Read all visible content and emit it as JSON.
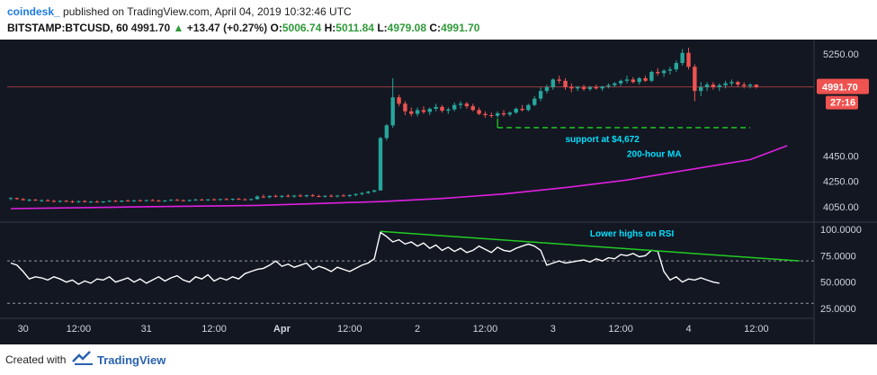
{
  "header": {
    "brand": "coindesk_",
    "published": "published on TradingView.com, April 04, 2019 10:32:46 UTC",
    "symbol": "BITSTAMP:BTCUSD, 60",
    "last": "4991.70",
    "up_arrow": "▲",
    "change": "+13.47 (+0.27%)",
    "o_label": "O:",
    "o_val": "5006.74",
    "h_label": "H:",
    "h_val": "5011.84",
    "l_label": "L:",
    "l_val": "4979.08",
    "c_label": "C:",
    "c_val": "4991.70"
  },
  "footer": {
    "created_with": "Created with",
    "tradingview": "TradingView"
  },
  "colors": {
    "background": "#131722",
    "up": "#26a69a",
    "down": "#ef5350",
    "ma": "#e020e0",
    "support": "#1fd81f",
    "rsi_line": "#ffffff",
    "rsi_trend": "#22cc22",
    "annotation_text": "#00e0ff",
    "last_price_bg": "#ef5350"
  },
  "chart_data": [
    {
      "type": "candlestick",
      "title": "",
      "y_ticks": [
        "5250.00",
        "4450.00",
        "4250.00",
        "4050.00"
      ],
      "ylim": [
        3950,
        5350
      ],
      "x_ticks": [
        "30",
        "12:00",
        "31",
        "12:00",
        "Apr",
        "12:00",
        "2",
        "12:00",
        "3",
        "12:00",
        "4",
        "12:00"
      ],
      "last_price_label": "4991.70",
      "countdown_label": "27:16",
      "annotations": [
        "support at $4,672",
        "200-hour MA"
      ],
      "support_level": 4672,
      "candles": [
        [
          4115,
          4125,
          4100,
          4118
        ],
        [
          4118,
          4122,
          4105,
          4110
        ],
        [
          4110,
          4118,
          4098,
          4102
        ],
        [
          4102,
          4112,
          4090,
          4105
        ],
        [
          4105,
          4112,
          4095,
          4098
        ],
        [
          4098,
          4108,
          4088,
          4100
        ],
        [
          4100,
          4110,
          4092,
          4095
        ],
        [
          4095,
          4105,
          4085,
          4090
        ],
        [
          4090,
          4100,
          4082,
          4096
        ],
        [
          4096,
          4104,
          4088,
          4092
        ],
        [
          4092,
          4100,
          4080,
          4088
        ],
        [
          4088,
          4098,
          4078,
          4094
        ],
        [
          4094,
          4102,
          4084,
          4086
        ],
        [
          4086,
          4096,
          4080,
          4090
        ],
        [
          4090,
          4100,
          4082,
          4084
        ],
        [
          4084,
          4094,
          4078,
          4092
        ],
        [
          4092,
          4102,
          4086,
          4096
        ],
        [
          4096,
          4104,
          4088,
          4090
        ],
        [
          4090,
          4100,
          4084,
          4098
        ],
        [
          4098,
          4108,
          4090,
          4094
        ],
        [
          4094,
          4104,
          4086,
          4100
        ],
        [
          4100,
          4108,
          4092,
          4096
        ],
        [
          4096,
          4104,
          4088,
          4102
        ],
        [
          4102,
          4110,
          4094,
          4098
        ],
        [
          4098,
          4106,
          4090,
          4092
        ],
        [
          4092,
          4102,
          4086,
          4100
        ],
        [
          4100,
          4110,
          4094,
          4104
        ],
        [
          4104,
          4112,
          4096,
          4100
        ],
        [
          4100,
          4108,
          4092,
          4098
        ],
        [
          4098,
          4106,
          4090,
          4103
        ],
        [
          4103,
          4112,
          4096,
          4106
        ],
        [
          4106,
          4114,
          4098,
          4100
        ],
        [
          4100,
          4110,
          4094,
          4108
        ],
        [
          4108,
          4116,
          4100,
          4104
        ],
        [
          4104,
          4112,
          4096,
          4110
        ],
        [
          4110,
          4118,
          4102,
          4106
        ],
        [
          4106,
          4114,
          4098,
          4112
        ],
        [
          4112,
          4120,
          4104,
          4108
        ],
        [
          4108,
          4116,
          4100,
          4104
        ],
        [
          4104,
          4114,
          4098,
          4110
        ],
        [
          4110,
          4140,
          4104,
          4130
        ],
        [
          4130,
          4145,
          4118,
          4125
        ],
        [
          4125,
          4140,
          4115,
          4135
        ],
        [
          4135,
          4145,
          4122,
          4128
        ],
        [
          4128,
          4140,
          4118,
          4136
        ],
        [
          4136,
          4148,
          4124,
          4130
        ],
        [
          4130,
          4142,
          4120,
          4138
        ],
        [
          4138,
          4150,
          4126,
          4132
        ],
        [
          4132,
          4146,
          4124,
          4140
        ],
        [
          4140,
          4150,
          4128,
          4134
        ],
        [
          4134,
          4144,
          4124,
          4130
        ],
        [
          4130,
          4140,
          4120,
          4136
        ],
        [
          4136,
          4148,
          4126,
          4132
        ],
        [
          4132,
          4142,
          4122,
          4138
        ],
        [
          4138,
          4150,
          4130,
          4134
        ],
        [
          4134,
          4146,
          4124,
          4142
        ],
        [
          4142,
          4156,
          4132,
          4150
        ],
        [
          4150,
          4164,
          4140,
          4158
        ],
        [
          4158,
          4175,
          4150,
          4168
        ],
        [
          4168,
          4185,
          4160,
          4178
        ],
        [
          4178,
          4600,
          4175,
          4590
        ],
        [
          4590,
          4700,
          4570,
          4690
        ],
        [
          4690,
          5060,
          4670,
          4910
        ],
        [
          4910,
          4930,
          4840,
          4860
        ],
        [
          4860,
          4880,
          4770,
          4800
        ],
        [
          4800,
          4830,
          4760,
          4780
        ],
        [
          4780,
          4830,
          4760,
          4810
        ],
        [
          4810,
          4840,
          4780,
          4795
        ],
        [
          4795,
          4830,
          4770,
          4820
        ],
        [
          4820,
          4860,
          4800,
          4835
        ],
        [
          4835,
          4850,
          4790,
          4805
        ],
        [
          4805,
          4830,
          4780,
          4815
        ],
        [
          4815,
          4870,
          4800,
          4850
        ],
        [
          4850,
          4880,
          4820,
          4860
        ],
        [
          4860,
          4875,
          4820,
          4840
        ],
        [
          4840,
          4860,
          4800,
          4810
        ],
        [
          4810,
          4830,
          4770,
          4780
        ],
        [
          4780,
          4800,
          4750,
          4770
        ],
        [
          4770,
          4790,
          4750,
          4765
        ],
        [
          4765,
          4800,
          4750,
          4785
        ],
        [
          4785,
          4810,
          4760,
          4775
        ],
        [
          4775,
          4800,
          4760,
          4790
        ],
        [
          4790,
          4830,
          4780,
          4820
        ],
        [
          4820,
          4850,
          4800,
          4810
        ],
        [
          4810,
          4860,
          4800,
          4850
        ],
        [
          4850,
          4920,
          4840,
          4900
        ],
        [
          4900,
          4990,
          4880,
          4960
        ],
        [
          4960,
          5010,
          4940,
          4990
        ],
        [
          4990,
          5060,
          4970,
          5050
        ],
        [
          5050,
          5080,
          5020,
          5040
        ],
        [
          5040,
          5060,
          4970,
          4990
        ],
        [
          4990,
          5020,
          4950,
          4980
        ],
        [
          4980,
          5000,
          4960,
          4990
        ],
        [
          4990,
          5010,
          4960,
          4975
        ],
        [
          4975,
          5000,
          4960,
          4990
        ],
        [
          4990,
          5010,
          4970,
          4980
        ],
        [
          4980,
          5000,
          4960,
          4995
        ],
        [
          4995,
          5020,
          4980,
          5005
        ],
        [
          5005,
          5030,
          4990,
          5020
        ],
        [
          5020,
          5050,
          5000,
          5040
        ],
        [
          5040,
          5080,
          5020,
          5050
        ],
        [
          5050,
          5070,
          5020,
          5030
        ],
        [
          5030,
          5070,
          5010,
          5060
        ],
        [
          5060,
          5080,
          5030,
          5040
        ],
        [
          5040,
          5120,
          5030,
          5110
        ],
        [
          5110,
          5140,
          5080,
          5100
        ],
        [
          5100,
          5130,
          5070,
          5120
        ],
        [
          5120,
          5150,
          5090,
          5130
        ],
        [
          5130,
          5200,
          5110,
          5180
        ],
        [
          5180,
          5290,
          5160,
          5260
        ],
        [
          5260,
          5300,
          5130,
          5150
        ],
        [
          5150,
          5170,
          4880,
          4960
        ],
        [
          4960,
          5030,
          4920,
          4990
        ],
        [
          4990,
          5030,
          4960,
          5010
        ],
        [
          5010,
          5030,
          4970,
          4990
        ],
        [
          4990,
          5020,
          4960,
          5005
        ],
        [
          5005,
          5040,
          4980,
          5020
        ],
        [
          5020,
          5050,
          5000,
          5030
        ],
        [
          5030,
          5040,
          4990,
          5010
        ],
        [
          5010,
          5030,
          4980,
          5000
        ],
        [
          5000,
          5020,
          4980,
          5010
        ],
        [
          5010,
          5012,
          4979,
          4992
        ]
      ],
      "ma_200": [
        [
          0,
          4035
        ],
        [
          20,
          4048
        ],
        [
          40,
          4060
        ],
        [
          60,
          4090
        ],
        [
          70,
          4115
        ],
        [
          80,
          4150
        ],
        [
          90,
          4200
        ],
        [
          100,
          4260
        ],
        [
          110,
          4340
        ],
        [
          120,
          4420
        ],
        [
          126,
          4530
        ]
      ]
    },
    {
      "type": "line",
      "title": "",
      "series_label": "RSI",
      "y_ticks": [
        "100.0000",
        "75.0000",
        "50.0000",
        "25.0000"
      ],
      "ylim": [
        20,
        105
      ],
      "dashed_levels": [
        70,
        30
      ],
      "annotation": "Lower highs on RSI",
      "values": [
        68,
        66,
        60,
        53,
        55,
        54,
        52,
        55,
        53,
        50,
        52,
        48,
        51,
        49,
        53,
        52,
        55,
        50,
        52,
        54,
        50,
        53,
        49,
        52,
        55,
        51,
        54,
        56,
        52,
        50,
        55,
        53,
        57,
        51,
        54,
        52,
        55,
        53,
        58,
        60,
        62,
        63,
        66,
        70,
        65,
        67,
        64,
        66,
        68,
        62,
        65,
        63,
        60,
        64,
        62,
        60,
        63,
        66,
        68,
        72,
        97,
        93,
        88,
        90,
        86,
        88,
        84,
        87,
        82,
        85,
        80,
        83,
        79,
        82,
        78,
        80,
        84,
        81,
        78,
        83,
        80,
        79,
        82,
        84,
        86,
        84,
        80,
        66,
        68,
        70,
        68,
        69,
        70,
        71,
        69,
        72,
        70,
        73,
        72,
        76,
        75,
        77,
        74,
        75,
        80,
        79,
        60,
        52,
        55,
        50,
        53,
        52,
        54,
        52,
        50,
        49
      ],
      "trend_from": [
        60,
        98
      ],
      "trend_to": [
        128,
        70
      ]
    }
  ]
}
